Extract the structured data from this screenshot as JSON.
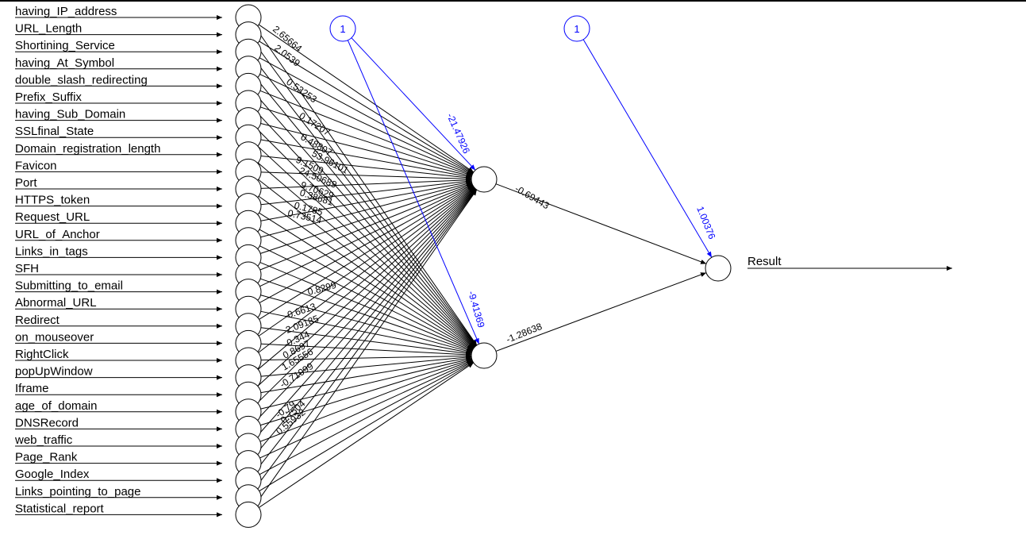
{
  "inputs": [
    "having_IP_address",
    "URL_Length",
    "Shortining_Service",
    "having_At_Symbol",
    "double_slash_redirecting",
    "Prefix_Suffix",
    "having_Sub_Domain",
    "SSLfinal_State",
    "Domain_registration_length",
    "Favicon",
    "Port",
    "HTTPS_token",
    "Request_URL",
    "URL_of_Anchor",
    "Links_in_tags",
    "SFH",
    "Submitting_to_email",
    "Abnormal_URL",
    "Redirect",
    "on_mouseover",
    "RightClick",
    "popUpWindow",
    "Iframe",
    "age_of_domain",
    "DNSRecord",
    "web_traffic",
    "Page_Rank",
    "Google_Index",
    "Links_pointing_to_page",
    "Statistical_report"
  ],
  "output_label": "Result",
  "bias_labels": [
    "1",
    "1"
  ],
  "bias_weights": {
    "hidden1": "-21.47926",
    "hidden2": "-9.41369",
    "output": "1.00376"
  },
  "hidden_to_output_weights": [
    "-0.69443",
    "-1.28638"
  ],
  "visible_input_weights_h1": [
    "2.65664",
    "2.0539",
    "0.53253",
    "0.17207",
    "0.48807",
    "53.96101",
    "9.1509",
    "24.50689",
    "9.70629",
    "0.38681",
    "0.1785",
    "0.73514"
  ],
  "visible_input_weights_h2": [
    "0.8299",
    "-0.6613",
    "2.09185",
    "-0.344",
    "0.8697",
    "1.65556",
    "-0.71099",
    "-0.79",
    "0.55932",
    "0.7504"
  ],
  "colors": {
    "edge": "#000000",
    "bias": "#0000ff"
  }
}
